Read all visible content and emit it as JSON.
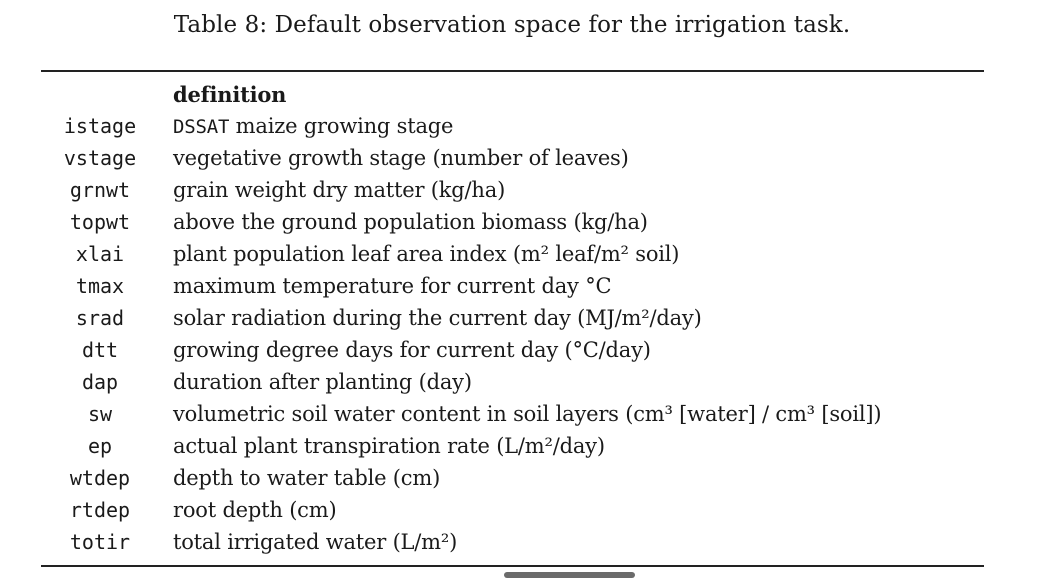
{
  "caption": "Table 8: Default observation space for the irrigation task.",
  "table": {
    "header": "definition",
    "rows": [
      {
        "key": "istage",
        "def_prefix_mono": "DSSAT",
        "def": " maize growing stage"
      },
      {
        "key": "vstage",
        "def": "vegetative growth stage (number of leaves)"
      },
      {
        "key": "grnwt",
        "def": "grain weight dry matter (kg/ha)"
      },
      {
        "key": "topwt",
        "def": "above the ground population biomass (kg/ha)"
      },
      {
        "key": "xlai",
        "def": "plant population leaf area index (m² leaf/m² soil)"
      },
      {
        "key": "tmax",
        "def": "maximum temperature for current day °C"
      },
      {
        "key": "srad",
        "def": "solar radiation during the current day (MJ/m²/day)"
      },
      {
        "key": "dtt",
        "def": "growing degree days for current day (°C/day)"
      },
      {
        "key": "dap",
        "def": "duration after planting (day)"
      },
      {
        "key": "sw",
        "def": "volumetric soil water content in soil layers (cm³ [water] / cm³ [soil])"
      },
      {
        "key": "ep",
        "def": "actual plant transpiration rate (L/m²/day)"
      },
      {
        "key": "wtdep",
        "def": "depth to water table (cm)"
      },
      {
        "key": "rtdep",
        "def": "root depth (cm)"
      },
      {
        "key": "totir",
        "def": "total irrigated water (L/m²)"
      }
    ]
  }
}
